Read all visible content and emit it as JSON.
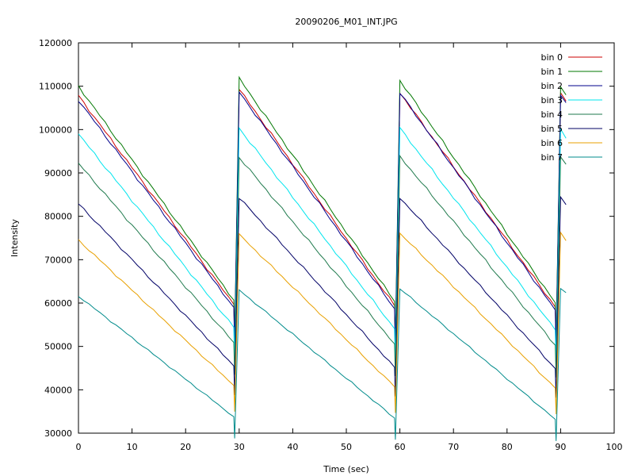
{
  "chart_data": {
    "type": "line",
    "title": "20090206_M01_INT.JPG",
    "xlabel": "Time (sec)",
    "ylabel": "Intensity",
    "xlim": [
      0,
      100
    ],
    "ylim": [
      30000,
      120000
    ],
    "xticks": [
      0,
      10,
      20,
      30,
      40,
      50,
      60,
      70,
      80,
      90,
      100
    ],
    "yticks": [
      30000,
      40000,
      50000,
      60000,
      70000,
      80000,
      90000,
      100000,
      110000,
      120000
    ],
    "grid": false,
    "legend_position": "top-right",
    "series": [
      {
        "name": "bin 0",
        "color": "#cc0000",
        "start": 107800,
        "end": 59700,
        "peaks": [
          109300,
          108500,
          108400
        ],
        "last": 106600
      },
      {
        "name": "bin 1",
        "color": "#007700",
        "start": 110000,
        "end": 60700,
        "peaks": [
          111800,
          111300,
          109600
        ],
        "last": 108000
      },
      {
        "name": "bin 2",
        "color": "#00008b",
        "start": 106800,
        "end": 59000,
        "peaks": [
          108700,
          108500,
          108200
        ],
        "last": 106200
      },
      {
        "name": "bin 3",
        "color": "#00e5ee",
        "start": 99000,
        "end": 54400,
        "peaks": [
          100300,
          100300,
          100200
        ],
        "last": 98000
      },
      {
        "name": "bin 4",
        "color": "#1f7a4d",
        "start": 92200,
        "end": 50900,
        "peaks": [
          93600,
          93800,
          93600
        ],
        "last": 92000
      },
      {
        "name": "bin 5",
        "color": "#000066",
        "start": 82900,
        "end": 45500,
        "peaks": [
          84300,
          84300,
          84500
        ],
        "last": 82700
      },
      {
        "name": "bin 6",
        "color": "#e8a000",
        "start": 74500,
        "end": 41000,
        "peaks": [
          75800,
          76100,
          76100
        ],
        "last": 74400
      },
      {
        "name": "bin 7",
        "color": "#008b8b",
        "start": 61600,
        "end": 33800,
        "peaks": [
          63000,
          63300,
          63400
        ],
        "last": 62400
      }
    ]
  }
}
